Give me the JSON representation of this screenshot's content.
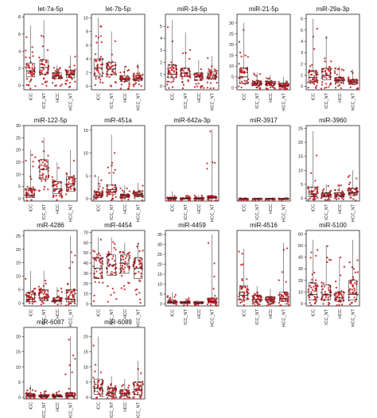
{
  "colors": {
    "point": "#c0171b",
    "box": "#2b2b2b",
    "frame": "#222222",
    "background": "#ffffff"
  },
  "chart_data": [
    {
      "type": "box",
      "title": "let-7a-5p",
      "categories": [
        "ICC",
        "ICC_NT",
        "HCC",
        "HCC_NT"
      ],
      "yticks": [
        0,
        2,
        4,
        6,
        8
      ],
      "ylim": [
        -0.5,
        8.3
      ],
      "boxes": [
        {
          "q1": 1.0,
          "median": 1.7,
          "q3": 2.6,
          "whisker_high": 7.0
        },
        {
          "q1": 1.3,
          "median": 2.1,
          "q3": 3.0,
          "whisker_high": 7.6
        },
        {
          "q1": 0.8,
          "median": 1.1,
          "q3": 1.5,
          "whisker_high": 2.4
        },
        {
          "q1": 0.9,
          "median": 1.3,
          "q3": 1.8,
          "whisker_high": 3.5
        }
      ]
    },
    {
      "type": "box",
      "title": "let-7b-5p",
      "categories": [
        "ICC",
        "ICC_NT",
        "HCC",
        "HCC_NT"
      ],
      "yticks": [
        0,
        2,
        4,
        6,
        8,
        10
      ],
      "ylim": [
        -0.5,
        10.5
      ],
      "boxes": [
        {
          "q1": 1.5,
          "median": 2.7,
          "q3": 4.0,
          "whisker_high": 10.0
        },
        {
          "q1": 1.7,
          "median": 2.5,
          "q3": 3.5,
          "whisker_high": 8.0
        },
        {
          "q1": 0.7,
          "median": 1.0,
          "q3": 1.5,
          "whisker_high": 3.0
        },
        {
          "q1": 0.8,
          "median": 1.1,
          "q3": 1.6,
          "whisker_high": 3.3
        }
      ]
    },
    {
      "type": "box",
      "title": "miR-16-5p",
      "categories": [
        "ICC",
        "ICC_NT",
        "HCC",
        "HCC_NT"
      ],
      "yticks": [
        0,
        1,
        2,
        3,
        4,
        5
      ],
      "ylim": [
        -0.3,
        6.0
      ],
      "boxes": [
        {
          "q1": 0.7,
          "median": 1.0,
          "q3": 1.8,
          "whisker_high": 5.5
        },
        {
          "q1": 0.8,
          "median": 1.1,
          "q3": 1.5,
          "whisker_high": 4.5
        },
        {
          "q1": 0.5,
          "median": 0.8,
          "q3": 1.1,
          "whisker_high": 2.2
        },
        {
          "q1": 0.6,
          "median": 0.9,
          "q3": 1.2,
          "whisker_high": 2.5
        }
      ]
    },
    {
      "type": "box",
      "title": "miR-21-5p",
      "categories": [
        "ICC",
        "ICC_NT",
        "HCC",
        "HCC_NT"
      ],
      "yticks": [
        0,
        5,
        10,
        15,
        20,
        25,
        30
      ],
      "ylim": [
        -1,
        34
      ],
      "boxes": [
        {
          "q1": 2.0,
          "median": 5.0,
          "q3": 9.0,
          "whisker_high": 30.0
        },
        {
          "q1": 1.0,
          "median": 2.0,
          "q3": 3.0,
          "whisker_high": 7.0
        },
        {
          "q1": 1.0,
          "median": 2.0,
          "q3": 3.0,
          "whisker_high": 6.0
        },
        {
          "q1": 0.5,
          "median": 1.0,
          "q3": 2.0,
          "whisker_high": 5.0
        }
      ]
    },
    {
      "type": "box",
      "title": "miR-29a-3p",
      "categories": [
        "ICC",
        "ICC_NT",
        "HCC",
        "HCC_NT"
      ],
      "yticks": [
        0,
        1,
        2,
        3,
        4,
        5,
        6
      ],
      "ylim": [
        -0.3,
        6.4
      ],
      "boxes": [
        {
          "q1": 0.4,
          "median": 0.8,
          "q3": 1.4,
          "whisker_high": 6.0
        },
        {
          "q1": 0.6,
          "median": 1.0,
          "q3": 1.6,
          "whisker_high": 4.5
        },
        {
          "q1": 0.3,
          "median": 0.5,
          "q3": 0.8,
          "whisker_high": 1.8
        },
        {
          "q1": 0.2,
          "median": 0.4,
          "q3": 0.6,
          "whisker_high": 1.5
        }
      ]
    },
    {
      "type": "box",
      "title": "miR-122-5p",
      "categories": [
        "ICC",
        "ICC_NT",
        "HCC",
        "HCC_NT"
      ],
      "yticks": [
        0,
        5,
        10,
        15,
        20,
        25,
        30
      ],
      "ylim": [
        -1,
        30
      ],
      "boxes": [
        {
          "q1": 0.5,
          "median": 1.5,
          "q3": 4.0,
          "whisker_high": 20.0
        },
        {
          "q1": 8.0,
          "median": 12.0,
          "q3": 16.0,
          "whisker_high": 25.0
        },
        {
          "q1": 2.0,
          "median": 4.0,
          "q3": 7.0,
          "whisker_high": 15.0
        },
        {
          "q1": 3.0,
          "median": 6.0,
          "q3": 9.0,
          "whisker_high": 20.0
        }
      ]
    },
    {
      "type": "box",
      "title": "miR-451a",
      "categories": [
        "ICC",
        "ICC_NT",
        "HCC",
        "HCC_NT"
      ],
      "yticks": [
        0,
        5,
        10,
        15
      ],
      "ylim": [
        -0.5,
        16
      ],
      "boxes": [
        {
          "q1": 0.3,
          "median": 0.8,
          "q3": 1.5,
          "whisker_high": 5.0
        },
        {
          "q1": 1.0,
          "median": 2.0,
          "q3": 3.0,
          "whisker_high": 14.0
        },
        {
          "q1": 0.3,
          "median": 0.6,
          "q3": 1.0,
          "whisker_high": 3.0
        },
        {
          "q1": 0.5,
          "median": 1.0,
          "q3": 1.5,
          "whisker_high": 3.5
        }
      ]
    },
    {
      "type": "box",
      "title": "miR-642a-3p",
      "categories": [
        "ICC",
        "ICC_NT",
        "HCC",
        "HCC_NT"
      ],
      "yticks": [],
      "ylim": [
        -0.5,
        19
      ],
      "boxes": [
        {
          "q1": 0.1,
          "median": 0.2,
          "q3": 0.4,
          "whisker_high": 2.0
        },
        {
          "q1": 0.1,
          "median": 0.2,
          "q3": 0.3,
          "whisker_high": 1.0
        },
        {
          "q1": 0.1,
          "median": 0.2,
          "q3": 0.3,
          "whisker_high": 1.0
        },
        {
          "q1": 0.2,
          "median": 0.4,
          "q3": 0.8,
          "whisker_high": 18.0
        }
      ]
    },
    {
      "type": "box",
      "title": "miR-3917",
      "categories": [
        "ICC",
        "ICC_NT",
        "HCC",
        "HCC_NT"
      ],
      "yticks": [],
      "ylim": [
        -0.5,
        19
      ],
      "boxes": [
        {
          "q1": 0.0,
          "median": 0.0,
          "q3": 0.1,
          "whisker_high": 0.3
        },
        {
          "q1": 0.0,
          "median": 0.0,
          "q3": 0.1,
          "whisker_high": 0.3
        },
        {
          "q1": 0.0,
          "median": 0.0,
          "q3": 0.1,
          "whisker_high": 0.3
        },
        {
          "q1": 0.0,
          "median": 0.0,
          "q3": 0.1,
          "whisker_high": 0.3
        }
      ]
    },
    {
      "type": "box",
      "title": "miR-3960",
      "categories": [
        "ICC",
        "ICC_NT",
        "HCC",
        "HCC_NT"
      ],
      "yticks": [
        0,
        5,
        10,
        15,
        20,
        25
      ],
      "ylim": [
        -1,
        26
      ],
      "boxes": [
        {
          "q1": 0.5,
          "median": 1.5,
          "q3": 4.0,
          "whisker_high": 24.0
        },
        {
          "q1": 0.5,
          "median": 1.0,
          "q3": 2.0,
          "whisker_high": 5.0
        },
        {
          "q1": 0.5,
          "median": 1.0,
          "q3": 2.0,
          "whisker_high": 5.0
        },
        {
          "q1": 1.0,
          "median": 2.0,
          "q3": 3.5,
          "whisker_high": 10.0
        }
      ]
    },
    {
      "type": "box",
      "title": "miR-4286",
      "categories": [
        "ICC",
        "ICC_NT",
        "HCC",
        "HCC_NT"
      ],
      "yticks": [
        0,
        5,
        10,
        15,
        20,
        25
      ],
      "ylim": [
        -1,
        27
      ],
      "boxes": [
        {
          "q1": 0.5,
          "median": 1.5,
          "q3": 4.0,
          "whisker_high": 12.0
        },
        {
          "q1": 1.0,
          "median": 2.0,
          "q3": 5.0,
          "whisker_high": 12.0
        },
        {
          "q1": 0.5,
          "median": 1.0,
          "q3": 2.0,
          "whisker_high": 6.0
        },
        {
          "q1": 0.5,
          "median": 1.5,
          "q3": 5.0,
          "whisker_high": 25.0
        }
      ]
    },
    {
      "type": "box",
      "title": "miR-4454",
      "categories": [
        "ICC",
        "ICC_NT",
        "HCC",
        "HCC_NT"
      ],
      "yticks": [
        0,
        10,
        20,
        30,
        40,
        50,
        60,
        70
      ],
      "ylim": [
        -2,
        72
      ],
      "boxes": [
        {
          "q1": 25.0,
          "median": 35.0,
          "q3": 45.0,
          "whisker_high": 65.0
        },
        {
          "q1": 28.0,
          "median": 38.0,
          "q3": 48.0,
          "whisker_high": 65.0
        },
        {
          "q1": 30.0,
          "median": 40.0,
          "q3": 48.0,
          "whisker_high": 60.0
        },
        {
          "q1": 25.0,
          "median": 35.0,
          "q3": 45.0,
          "whisker_high": 60.0
        }
      ]
    },
    {
      "type": "box",
      "title": "miR-4459",
      "categories": [
        "ICC",
        "ICC_NT",
        "HCC",
        "HCC_NT"
      ],
      "yticks": [
        0,
        5,
        10,
        15,
        20,
        25,
        30,
        35
      ],
      "ylim": [
        -1,
        37
      ],
      "boxes": [
        {
          "q1": 0.5,
          "median": 1.0,
          "q3": 2.0,
          "whisker_high": 6.0
        },
        {
          "q1": 0.3,
          "median": 0.7,
          "q3": 1.2,
          "whisker_high": 3.0
        },
        {
          "q1": 0.2,
          "median": 0.5,
          "q3": 1.0,
          "whisker_high": 2.0
        },
        {
          "q1": 0.5,
          "median": 1.2,
          "q3": 3.0,
          "whisker_high": 35.0
        }
      ]
    },
    {
      "type": "box",
      "title": "miR-4516",
      "categories": [
        "ICC",
        "ICC_NT",
        "HCC",
        "HCC_NT"
      ],
      "yticks": [],
      "ylim": [
        -0.5,
        24
      ],
      "boxes": [
        {
          "q1": 1.5,
          "median": 3.0,
          "q3": 6.0,
          "whisker_high": 18.0
        },
        {
          "q1": 0.8,
          "median": 1.5,
          "q3": 3.0,
          "whisker_high": 6.0
        },
        {
          "q1": 0.8,
          "median": 1.5,
          "q3": 2.5,
          "whisker_high": 5.0
        },
        {
          "q1": 1.0,
          "median": 2.0,
          "q3": 4.0,
          "whisker_high": 20.0
        }
      ]
    },
    {
      "type": "box",
      "title": "miR-5100",
      "categories": [
        "ICC",
        "ICC_NT",
        "HCC",
        "HCC_NT"
      ],
      "yticks": [
        0,
        10,
        20,
        30,
        40,
        50,
        60
      ],
      "ylim": [
        -2,
        63
      ],
      "boxes": [
        {
          "q1": 3.0,
          "median": 8.0,
          "q3": 18.0,
          "whisker_high": 55.0
        },
        {
          "q1": 3.0,
          "median": 8.0,
          "q3": 16.0,
          "whisker_high": 50.0
        },
        {
          "q1": 2.0,
          "median": 5.0,
          "q3": 10.0,
          "whisker_high": 40.0
        },
        {
          "q1": 3.0,
          "median": 8.0,
          "q3": 20.0,
          "whisker_high": 55.0
        }
      ]
    },
    {
      "type": "box",
      "title": "miR-6087",
      "categories": [
        "ICC",
        "ICC_NT",
        "HCC",
        "HCC_NT"
      ],
      "yticks": [
        0,
        5,
        10,
        15,
        20
      ],
      "ylim": [
        -0.5,
        23
      ],
      "boxes": [
        {
          "q1": 0.3,
          "median": 0.6,
          "q3": 1.2,
          "whisker_high": 4.0
        },
        {
          "q1": 0.2,
          "median": 0.4,
          "q3": 0.8,
          "whisker_high": 2.0
        },
        {
          "q1": 0.2,
          "median": 0.4,
          "q3": 0.8,
          "whisker_high": 2.0
        },
        {
          "q1": 0.3,
          "median": 0.6,
          "q3": 1.5,
          "whisker_high": 20.0
        }
      ]
    },
    {
      "type": "box",
      "title": "miR-6089",
      "categories": [
        "ICC",
        "ICC_NT",
        "HCC",
        "HCC_NT"
      ],
      "yticks": [
        0,
        5,
        10,
        15,
        20
      ],
      "ylim": [
        -0.5,
        23
      ],
      "boxes": [
        {
          "q1": 1.0,
          "median": 3.0,
          "q3": 6.0,
          "whisker_high": 20.0
        },
        {
          "q1": 0.5,
          "median": 1.5,
          "q3": 3.0,
          "whisker_high": 7.0
        },
        {
          "q1": 0.5,
          "median": 1.2,
          "q3": 2.5,
          "whisker_high": 6.0
        },
        {
          "q1": 1.0,
          "median": 2.5,
          "q3": 5.0,
          "whisker_high": 12.0
        }
      ]
    }
  ]
}
